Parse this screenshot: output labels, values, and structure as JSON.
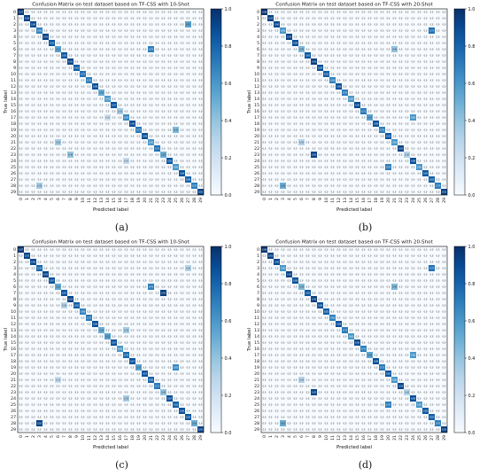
{
  "figure": {
    "panels": [
      {
        "id": "a",
        "caption": "(a)",
        "title": "Confusion Matrix on test dataset based on TF-CSS with 10-Shot"
      },
      {
        "id": "b",
        "caption": "(b)",
        "title": "Confusion Matrix on test dataset based on TF-CSS with 20-Shot"
      },
      {
        "id": "c",
        "caption": "(c)",
        "title": "Confusion Matrix on test dataset based on TF-CSS with 10-Shot"
      },
      {
        "id": "d",
        "caption": "(d)",
        "title": "Confusion Matrix on test dataset based on TF-CSS with 20-Shot"
      }
    ]
  },
  "chart_data": [
    {
      "type": "heatmap",
      "title": "Confusion Matrix on test dataset based on TF-CSS with 10-Shot",
      "xlabel": "Predicted label",
      "ylabel": "True label",
      "labels": [
        "0",
        "1",
        "2",
        "3",
        "4",
        "5",
        "6",
        "7",
        "8",
        "9",
        "10",
        "11",
        "12",
        "13",
        "14",
        "15",
        "16",
        "17",
        "18",
        "19",
        "20",
        "21",
        "22",
        "23",
        "24",
        "25",
        "26",
        "27",
        "28",
        "29"
      ],
      "colorbar": {
        "min": 0.0,
        "max": 1.0,
        "ticks": [
          0.0,
          0.2,
          0.4,
          0.6,
          0.8,
          1.0
        ],
        "colormap": "Blues"
      },
      "cell_text": "0.0",
      "diagonal": [
        0.97,
        0.93,
        0.9,
        0.68,
        0.93,
        0.85,
        0.55,
        0.85,
        0.92,
        0.83,
        0.75,
        0.7,
        0.88,
        0.5,
        0.58,
        0.87,
        0.35,
        0.65,
        0.9,
        0.72,
        0.88,
        0.6,
        0.75,
        0.5,
        0.85,
        0.6,
        0.88,
        0.8,
        0.7,
        0.92
      ],
      "off_diagonal": [
        {
          "true": 2,
          "pred": 27,
          "value": 0.55
        },
        {
          "true": 6,
          "pred": 21,
          "value": 0.7
        },
        {
          "true": 17,
          "pred": 14,
          "value": 0.2
        },
        {
          "true": 19,
          "pred": 25,
          "value": 0.45
        },
        {
          "true": 21,
          "pred": 6,
          "value": 0.35
        },
        {
          "true": 23,
          "pred": 8,
          "value": 0.4
        },
        {
          "true": 24,
          "pred": 17,
          "value": 0.25
        },
        {
          "true": 28,
          "pred": 3,
          "value": 0.35
        }
      ]
    },
    {
      "type": "heatmap",
      "title": "Confusion Matrix on test dataset based on TF-CSS with 20-Shot",
      "xlabel": "Predicted label",
      "ylabel": "True label",
      "labels": [
        "0",
        "1",
        "2",
        "3",
        "4",
        "5",
        "6",
        "7",
        "8",
        "9",
        "10",
        "11",
        "12",
        "13",
        "14",
        "15",
        "16",
        "17",
        "18",
        "19",
        "20",
        "21",
        "22",
        "23",
        "24",
        "25",
        "26",
        "27",
        "28",
        "29"
      ],
      "colorbar": {
        "min": 0.0,
        "max": 1.0,
        "ticks": [
          0.0,
          0.2,
          0.4,
          0.6,
          0.8,
          1.0
        ],
        "colormap": "Blues"
      },
      "cell_text": "0.0",
      "diagonal": [
        0.98,
        0.93,
        0.9,
        0.6,
        0.93,
        0.88,
        0.45,
        0.85,
        0.95,
        0.88,
        0.82,
        0.68,
        0.88,
        0.7,
        0.6,
        0.9,
        0.72,
        0.55,
        0.88,
        0.7,
        0.85,
        0.6,
        0.92,
        0.3,
        0.88,
        0.6,
        0.85,
        0.82,
        0.7,
        0.93
      ],
      "off_diagonal": [
        {
          "true": 3,
          "pred": 27,
          "value": 0.75
        },
        {
          "true": 6,
          "pred": 21,
          "value": 0.4
        },
        {
          "true": 17,
          "pred": 24,
          "value": 0.6
        },
        {
          "true": 21,
          "pred": 6,
          "value": 0.3
        },
        {
          "true": 23,
          "pred": 8,
          "value": 0.92
        },
        {
          "true": 25,
          "pred": 20,
          "value": 0.7
        },
        {
          "true": 28,
          "pred": 3,
          "value": 0.5
        }
      ]
    },
    {
      "type": "heatmap",
      "title": "Confusion Matrix on test dataset based on TF-CSS with 10-Shot",
      "xlabel": "Predicted label",
      "ylabel": "True label",
      "labels": [
        "0",
        "1",
        "2",
        "3",
        "4",
        "5",
        "6",
        "7",
        "8",
        "9",
        "10",
        "11",
        "12",
        "13",
        "14",
        "15",
        "16",
        "17",
        "18",
        "19",
        "20",
        "21",
        "22",
        "23",
        "24",
        "25",
        "26",
        "27",
        "28",
        "29"
      ],
      "colorbar": {
        "min": 0.0,
        "max": 1.0,
        "ticks": [
          0.0,
          0.2,
          0.4,
          0.6,
          0.8,
          1.0
        ],
        "colormap": "Blues"
      },
      "cell_text": "0.0",
      "diagonal": [
        0.97,
        0.92,
        0.9,
        0.78,
        0.92,
        0.87,
        0.52,
        0.87,
        0.93,
        0.82,
        0.68,
        0.72,
        0.88,
        0.5,
        0.55,
        0.87,
        0.6,
        0.78,
        0.87,
        0.55,
        0.87,
        0.8,
        0.72,
        0.4,
        0.87,
        0.82,
        0.88,
        0.85,
        0.5,
        0.92
      ],
      "off_diagonal": [
        {
          "true": 3,
          "pred": 27,
          "value": 0.3
        },
        {
          "true": 6,
          "pred": 21,
          "value": 0.7
        },
        {
          "true": 7,
          "pred": 23,
          "value": 0.95
        },
        {
          "true": 9,
          "pred": 7,
          "value": 0.3
        },
        {
          "true": 13,
          "pred": 17,
          "value": 0.35
        },
        {
          "true": 19,
          "pred": 25,
          "value": 0.65
        },
        {
          "true": 21,
          "pred": 6,
          "value": 0.25
        },
        {
          "true": 24,
          "pred": 17,
          "value": 0.35
        },
        {
          "true": 28,
          "pred": 3,
          "value": 0.92
        }
      ]
    },
    {
      "type": "heatmap",
      "title": "Confusion Matrix on test dataset based on TF-CSS with 20-Shot",
      "xlabel": "Predicted label",
      "ylabel": "True label",
      "labels": [
        "0",
        "1",
        "2",
        "3",
        "4",
        "5",
        "6",
        "7",
        "8",
        "9",
        "10",
        "11",
        "12",
        "13",
        "14",
        "15",
        "16",
        "17",
        "18",
        "19",
        "20",
        "21",
        "22",
        "23",
        "24",
        "25",
        "26",
        "27",
        "28",
        "29"
      ],
      "colorbar": {
        "min": 0.0,
        "max": 1.0,
        "ticks": [
          0.0,
          0.2,
          0.4,
          0.6,
          0.8,
          1.0
        ],
        "colormap": "Blues"
      },
      "cell_text": "0.0",
      "diagonal": [
        0.98,
        0.93,
        0.9,
        0.6,
        0.93,
        0.88,
        0.45,
        0.85,
        0.95,
        0.88,
        0.82,
        0.68,
        0.88,
        0.72,
        0.6,
        0.9,
        0.7,
        0.55,
        0.88,
        0.72,
        0.85,
        0.6,
        0.92,
        0.3,
        0.88,
        0.6,
        0.85,
        0.82,
        0.7,
        0.93
      ],
      "off_diagonal": [
        {
          "true": 3,
          "pred": 27,
          "value": 0.75
        },
        {
          "true": 6,
          "pred": 21,
          "value": 0.45
        },
        {
          "true": 17,
          "pred": 24,
          "value": 0.6
        },
        {
          "true": 21,
          "pred": 6,
          "value": 0.3
        },
        {
          "true": 23,
          "pred": 8,
          "value": 0.92
        },
        {
          "true": 25,
          "pred": 20,
          "value": 0.7
        },
        {
          "true": 28,
          "pred": 3,
          "value": 0.5
        }
      ]
    }
  ]
}
